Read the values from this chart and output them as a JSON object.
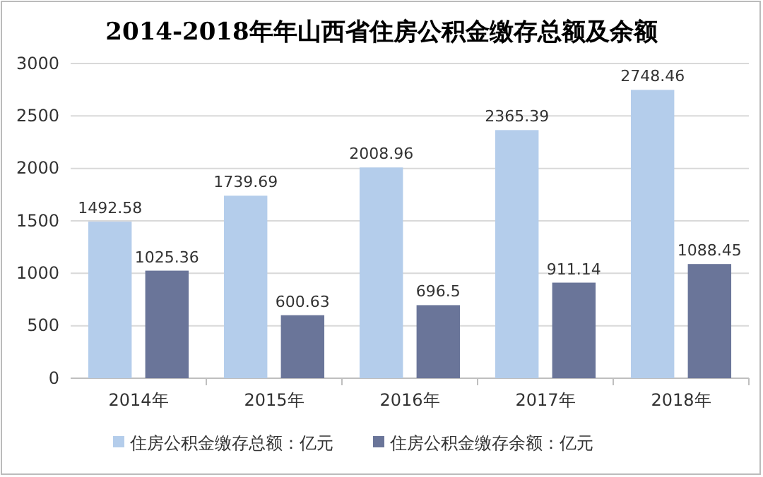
{
  "chart_data": {
    "type": "bar",
    "title": "2014-2018年年山西省住房公积金缴存总额及余额",
    "categories": [
      "2014年",
      "2015年",
      "2016年",
      "2017年",
      "2018年"
    ],
    "series": [
      {
        "name": "住房公积金缴存总额：亿元",
        "color": "#b4cdeb",
        "values": [
          1492.58,
          1739.69,
          2008.96,
          2365.39,
          2748.46
        ]
      },
      {
        "name": "住房公积金缴存余额：亿元",
        "color": "#6a7599",
        "values": [
          1025.36,
          600.63,
          696.5,
          911.14,
          1088.45
        ]
      }
    ],
    "ylim": [
      0,
      3000
    ],
    "yticks": [
      0,
      500,
      1000,
      1500,
      2000,
      2500,
      3000
    ],
    "grid": "y",
    "legend": "bottom",
    "data_labels": true
  }
}
